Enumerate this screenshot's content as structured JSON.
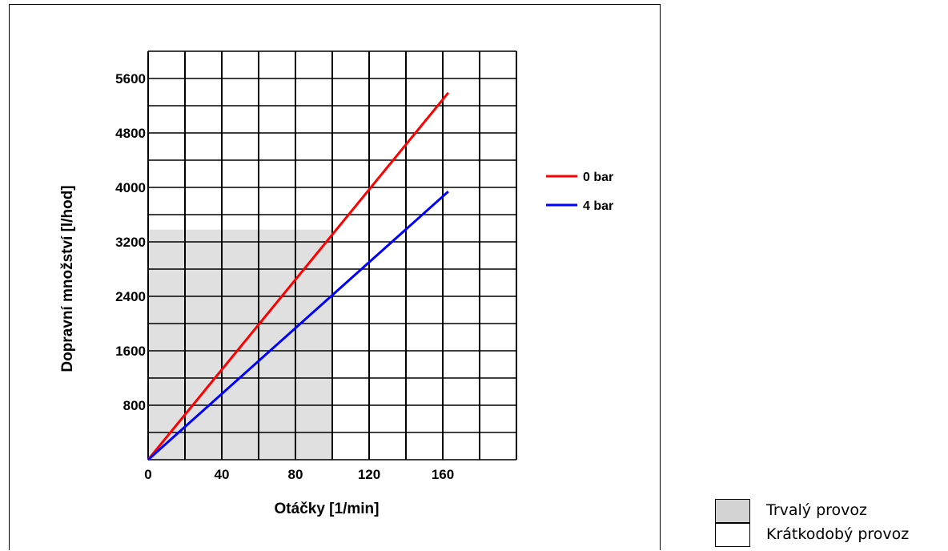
{
  "chart_data": {
    "type": "line",
    "xlabel": "Otáčky [1/min]",
    "ylabel": "Dopravní množství [l/hod]",
    "xlim": [
      0,
      200
    ],
    "ylim": [
      0,
      6000
    ],
    "x_ticks": [
      0,
      40,
      80,
      120,
      160
    ],
    "y_ticks": [
      800,
      1600,
      2400,
      3200,
      4000,
      4800,
      5600
    ],
    "x_grid_step": 20,
    "y_grid_step": 400,
    "grid": true,
    "legend_position": "right",
    "series": [
      {
        "name": "0 bar",
        "color": "#ff0000",
        "x": [
          0,
          163
        ],
        "y": [
          0,
          5390
        ]
      },
      {
        "name": "4 bar",
        "color": "#0000ff",
        "x": [
          0,
          163
        ],
        "y": [
          0,
          3940
        ]
      }
    ],
    "shaded_region": {
      "x": [
        0,
        100
      ],
      "y": [
        0,
        3380
      ],
      "fill": "#e0e0e0",
      "label": "Trvalý provoz"
    },
    "region_legend": [
      {
        "label": "Trvalý provoz",
        "fill": "#d3d3d3"
      },
      {
        "label": "Krátkodobý provoz",
        "fill": "#ffffff"
      }
    ]
  }
}
